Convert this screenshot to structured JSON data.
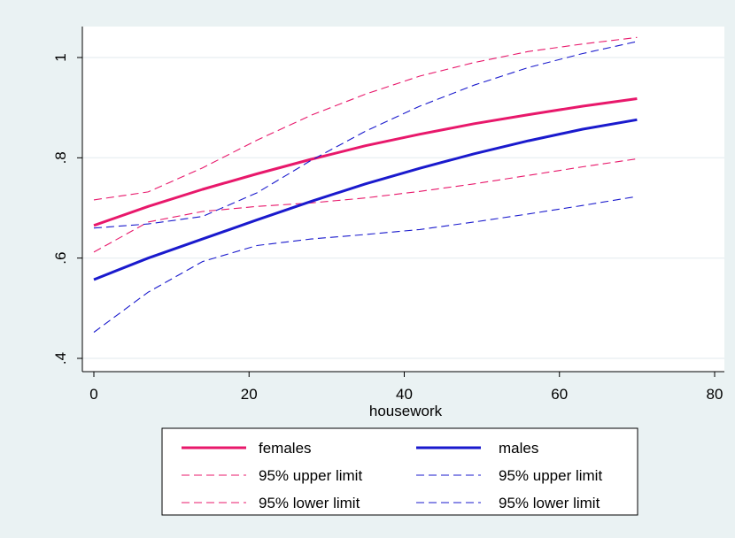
{
  "chart_data": {
    "type": "line",
    "title": "",
    "xlabel": "housework",
    "ylabel": "",
    "xlim": [
      0,
      80
    ],
    "ylim": [
      0.4,
      1.05
    ],
    "xticks": [
      0,
      20,
      40,
      60,
      80
    ],
    "xtick_labels": [
      "0",
      "20",
      "40",
      "60",
      "80"
    ],
    "yticks": [
      0.4,
      0.6,
      0.8,
      1.0
    ],
    "ytick_labels": [
      ".4",
      ".6",
      ".8",
      "1"
    ],
    "grid": "horizontal",
    "legend_position": "bottom",
    "colors": {
      "females": "#e8186b",
      "males": "#1a1acd",
      "plot_background": "#ffffff",
      "outer_background": "#eaf2f3",
      "gridline": "#e6eef0"
    },
    "series": [
      {
        "name": "females",
        "style": "solid",
        "color": "#e8186b",
        "x": [
          0,
          7,
          14,
          21,
          28,
          35,
          42,
          49,
          56,
          63,
          70
        ],
        "values": [
          0.665,
          0.703,
          0.737,
          0.768,
          0.797,
          0.824,
          0.847,
          0.868,
          0.886,
          0.903,
          0.918
        ]
      },
      {
        "name": "95% upper limit",
        "style": "dashed",
        "color": "#e8186b",
        "x": [
          0,
          7,
          14,
          21,
          28,
          35,
          42,
          49,
          56,
          63,
          70
        ],
        "values": [
          0.716,
          0.732,
          0.78,
          0.835,
          0.885,
          0.927,
          0.963,
          0.99,
          1.012,
          1.027,
          1.04
        ]
      },
      {
        "name": "95% lower limit",
        "style": "dashed",
        "color": "#e8186b",
        "x": [
          0,
          7,
          14,
          21,
          28,
          35,
          42,
          49,
          56,
          63,
          70
        ],
        "values": [
          0.612,
          0.672,
          0.693,
          0.703,
          0.71,
          0.72,
          0.733,
          0.748,
          0.765,
          0.782,
          0.798
        ]
      },
      {
        "name": "males",
        "style": "solid",
        "color": "#1a1acd",
        "x": [
          0,
          7,
          14,
          21,
          28,
          35,
          42,
          49,
          56,
          63,
          70
        ],
        "values": [
          0.557,
          0.6,
          0.638,
          0.676,
          0.713,
          0.748,
          0.779,
          0.808,
          0.834,
          0.857,
          0.876
        ]
      },
      {
        "name": "95% upper limit",
        "style": "dashed",
        "color": "#1a1acd",
        "x": [
          0,
          7,
          14,
          21,
          28,
          35,
          42,
          49,
          56,
          63,
          70
        ],
        "values": [
          0.66,
          0.668,
          0.683,
          0.73,
          0.795,
          0.853,
          0.903,
          0.945,
          0.98,
          1.008,
          1.032
        ]
      },
      {
        "name": "95% lower limit",
        "style": "dashed",
        "color": "#1a1acd",
        "x": [
          0,
          7,
          14,
          21,
          28,
          35,
          42,
          49,
          56,
          63,
          70
        ],
        "values": [
          0.452,
          0.532,
          0.593,
          0.625,
          0.638,
          0.647,
          0.657,
          0.672,
          0.688,
          0.705,
          0.723
        ]
      }
    ],
    "legend": {
      "columns": [
        [
          {
            "label": "females",
            "series": 0
          },
          {
            "label": "95% upper limit",
            "series": 1
          },
          {
            "label": "95% lower limit",
            "series": 2
          }
        ],
        [
          {
            "label": "males",
            "series": 3
          },
          {
            "label": "95% upper limit",
            "series": 4
          },
          {
            "label": "95% lower limit",
            "series": 5
          }
        ]
      ]
    }
  }
}
